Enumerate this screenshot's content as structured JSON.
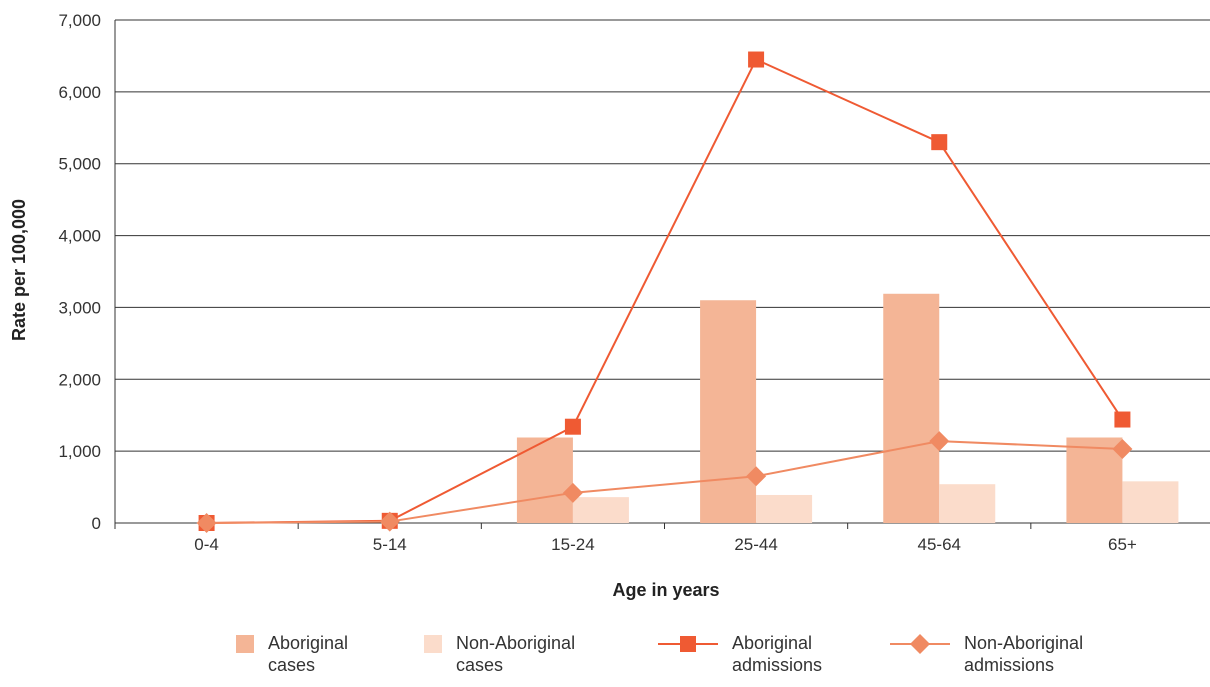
{
  "chart_data": {
    "type": "bar",
    "categories": [
      "0-4",
      "5-14",
      "15-24",
      "25-44",
      "45-64",
      "65+"
    ],
    "xlabel": "Age in years",
    "ylabel": "Rate per 100,000",
    "ylim": [
      0,
      7000
    ],
    "yticks": [
      "0",
      "1,000",
      "2,000",
      "3,000",
      "4,000",
      "5,000",
      "6,000",
      "7,000"
    ],
    "grid": "horizontal",
    "legend_position": "bottom",
    "series": [
      {
        "name": "Aboriginal cases",
        "kind": "bar",
        "color": "#f4b596",
        "values": [
          0,
          0,
          1190,
          3100,
          3190,
          1190
        ]
      },
      {
        "name": "Non-Aboriginal cases",
        "kind": "bar",
        "color": "#fbdccb",
        "values": [
          0,
          0,
          360,
          390,
          540,
          580
        ]
      },
      {
        "name": "Aboriginal admissions",
        "kind": "line",
        "marker": "square",
        "color": "#ef5a33",
        "values": [
          0,
          30,
          1340,
          6450,
          5300,
          1440
        ]
      },
      {
        "name": "Non-Aboriginal admissions",
        "kind": "line",
        "marker": "diamond",
        "color": "#f08a62",
        "values": [
          0,
          20,
          420,
          650,
          1140,
          1030
        ]
      }
    ]
  },
  "legend": [
    {
      "line1": "Aboriginal",
      "line2": "cases"
    },
    {
      "line1": "Non-Aboriginal",
      "line2": "cases"
    },
    {
      "line1": "Aboriginal",
      "line2": "admissions"
    },
    {
      "line1": "Non-Aboriginal",
      "line2": "admissions"
    }
  ]
}
